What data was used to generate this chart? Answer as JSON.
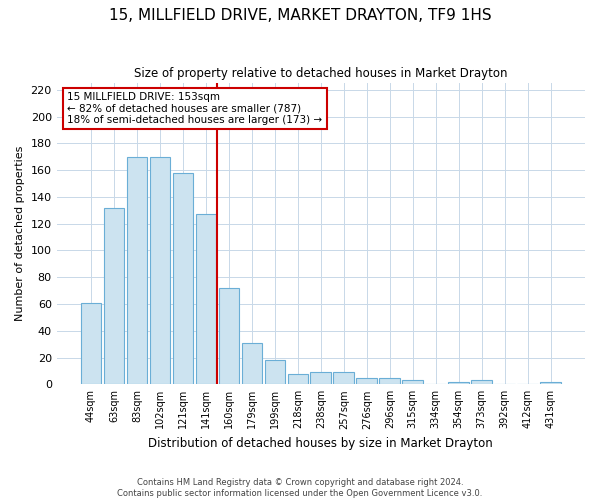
{
  "title": "15, MILLFIELD DRIVE, MARKET DRAYTON, TF9 1HS",
  "subtitle": "Size of property relative to detached houses in Market Drayton",
  "xlabel": "Distribution of detached houses by size in Market Drayton",
  "ylabel": "Number of detached properties",
  "bar_labels": [
    "44sqm",
    "63sqm",
    "83sqm",
    "102sqm",
    "121sqm",
    "141sqm",
    "160sqm",
    "179sqm",
    "199sqm",
    "218sqm",
    "238sqm",
    "257sqm",
    "276sqm",
    "296sqm",
    "315sqm",
    "334sqm",
    "354sqm",
    "373sqm",
    "392sqm",
    "412sqm",
    "431sqm"
  ],
  "bar_values": [
    61,
    132,
    170,
    170,
    158,
    127,
    72,
    31,
    18,
    8,
    9,
    9,
    5,
    5,
    3,
    0,
    2,
    3,
    0,
    0,
    2
  ],
  "bar_color": "#cce3f0",
  "bar_edge_color": "#6aaed6",
  "ylim": [
    0,
    225
  ],
  "yticks": [
    0,
    20,
    40,
    60,
    80,
    100,
    120,
    140,
    160,
    180,
    200,
    220
  ],
  "ref_line_x": 5.5,
  "ref_line_color": "#cc0000",
  "annotation_title": "15 MILLFIELD DRIVE: 153sqm",
  "annotation_line1": "← 82% of detached houses are smaller (787)",
  "annotation_line2": "18% of semi-detached houses are larger (173) →",
  "annotation_box_color": "#ffffff",
  "annotation_border_color": "#cc0000",
  "footer_line1": "Contains HM Land Registry data © Crown copyright and database right 2024.",
  "footer_line2": "Contains public sector information licensed under the Open Government Licence v3.0.",
  "background_color": "#ffffff",
  "grid_color": "#c8d8e8"
}
